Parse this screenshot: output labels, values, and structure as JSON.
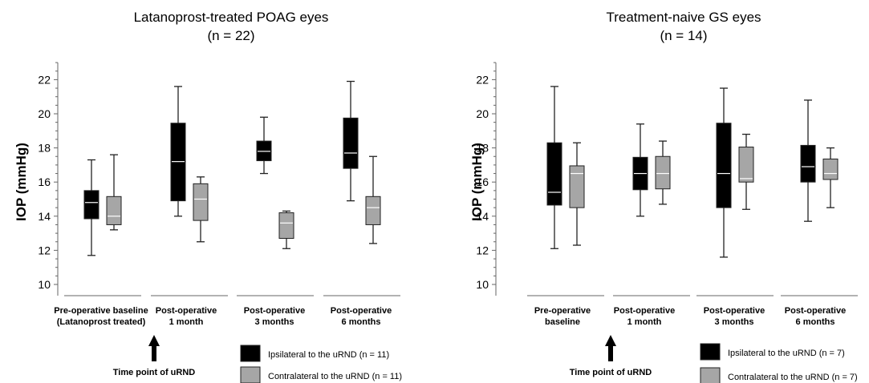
{
  "chart_data": [
    {
      "type": "boxplot",
      "title": "Latanoprost-treated POAG eyes",
      "subtitle": "(n = 22)",
      "ylabel": "IOP (mmHg)",
      "ylim": [
        10,
        23
      ],
      "yticks": [
        10,
        12,
        14,
        16,
        18,
        20,
        22
      ],
      "categories": [
        [
          "Pre-operative baseline",
          "(Latanoprost treated)"
        ],
        [
          "Post-operative",
          "1 month"
        ],
        [
          "Post-operative",
          "3 months"
        ],
        [
          "Post-operative",
          "6 months"
        ]
      ],
      "series": [
        {
          "name": "Ipsilateral to the uRND",
          "legend_label": "Ipsilateral to the uRND  (n = 11)",
          "color": "#000000",
          "median_color": "#ffffff",
          "boxes": [
            {
              "min": 11.7,
              "q1": 13.85,
              "median": 14.8,
              "q3": 15.5,
              "max": 17.3
            },
            {
              "min": 14.0,
              "q1": 14.9,
              "median": 17.2,
              "q3": 19.45,
              "max": 21.6
            },
            {
              "min": 16.5,
              "q1": 17.25,
              "median": 17.8,
              "q3": 18.4,
              "max": 19.8
            },
            {
              "min": 14.9,
              "q1": 16.8,
              "median": 17.7,
              "q3": 19.75,
              "max": 21.9
            }
          ]
        },
        {
          "name": "Contralateral to the uRND",
          "legend_label": "Contralateral to the uRND  (n = 11)",
          "color": "#a6a6a6",
          "median_color": "#ffffff",
          "boxes": [
            {
              "min": 13.2,
              "q1": 13.5,
              "median": 14.0,
              "q3": 15.15,
              "max": 17.6
            },
            {
              "min": 12.5,
              "q1": 13.75,
              "median": 15.0,
              "q3": 15.9,
              "max": 16.3
            },
            {
              "min": 12.1,
              "q1": 12.7,
              "median": 13.6,
              "q3": 14.2,
              "max": 14.3
            },
            {
              "min": 12.4,
              "q1": 13.5,
              "median": 14.5,
              "q3": 15.15,
              "max": 17.5
            }
          ]
        }
      ],
      "annotation": "Time point of uRND"
    },
    {
      "type": "boxplot",
      "title": "Treatment-naive GS eyes",
      "subtitle": "(n = 14)",
      "ylabel": "IOP (mmHg)",
      "ylim": [
        10,
        23
      ],
      "yticks": [
        10,
        12,
        14,
        16,
        18,
        20,
        22
      ],
      "categories": [
        [
          "Pre-operative",
          "baseline"
        ],
        [
          "Post-operative",
          "1 month"
        ],
        [
          "Post-operative",
          "3 months"
        ],
        [
          "Post-operative",
          "6 months"
        ]
      ],
      "series": [
        {
          "name": "Ipsilateral to the uRND",
          "legend_label": "Ipsilateral to the uRND  (n = 7)",
          "color": "#000000",
          "median_color": "#ffffff",
          "boxes": [
            {
              "min": 12.1,
              "q1": 14.65,
              "median": 15.4,
              "q3": 18.3,
              "max": 21.6
            },
            {
              "min": 14.0,
              "q1": 15.55,
              "median": 16.5,
              "q3": 17.45,
              "max": 19.4
            },
            {
              "min": 11.6,
              "q1": 14.5,
              "median": 16.5,
              "q3": 19.45,
              "max": 21.5
            },
            {
              "min": 13.7,
              "q1": 16.0,
              "median": 16.9,
              "q3": 18.15,
              "max": 20.8
            }
          ]
        },
        {
          "name": "Contralateral to the uRND",
          "legend_label": "Contralateral to the uRND  (n = 7)",
          "color": "#a6a6a6",
          "median_color": "#ffffff",
          "boxes": [
            {
              "min": 12.3,
              "q1": 14.5,
              "median": 16.5,
              "q3": 16.95,
              "max": 18.3
            },
            {
              "min": 14.7,
              "q1": 15.6,
              "median": 16.5,
              "q3": 17.5,
              "max": 18.4
            },
            {
              "min": 14.4,
              "q1": 16.0,
              "median": 16.2,
              "q3": 18.05,
              "max": 18.8
            },
            {
              "min": 14.5,
              "q1": 16.15,
              "median": 16.5,
              "q3": 17.35,
              "max": 18.0
            }
          ]
        }
      ],
      "annotation": "Time point of uRND"
    }
  ]
}
